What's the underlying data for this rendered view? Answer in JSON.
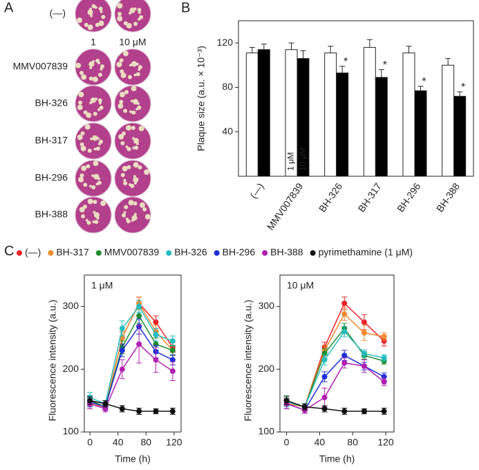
{
  "panel_a": {
    "label": "A",
    "row_labels": [
      "(—)",
      "MMV007839",
      "BH-326",
      "BH-317",
      "BH-296",
      "BH-388"
    ],
    "column_labels": [
      "1",
      "10 μM"
    ]
  },
  "chart_data": [
    {
      "type": "bar",
      "panel_label": "B",
      "ylabel": "Plaque size (a.u. × 10⁻³)",
      "categories": [
        "(—)",
        "MMV007839",
        "BH-326",
        "BH-317",
        "BH-296",
        "BH-388"
      ],
      "series": [
        {
          "name": "1 μM",
          "color": "#ffffff",
          "values": [
            111,
            114,
            111,
            116,
            111,
            100
          ],
          "errors": [
            5,
            6,
            6,
            7,
            6,
            6
          ]
        },
        {
          "name": "10 μM",
          "color": "#000000",
          "values": [
            114,
            106,
            93,
            89,
            77,
            72
          ],
          "errors": [
            5,
            7,
            6,
            7,
            4,
            4
          ],
          "significance": [
            null,
            null,
            "*",
            "*",
            "*",
            "*"
          ]
        }
      ],
      "ylim": [
        0,
        140
      ],
      "yticks": [
        40,
        80,
        120
      ]
    },
    {
      "type": "line",
      "panel_label": "C",
      "annotation": "1 μM",
      "xlabel": "Time (h)",
      "ylabel": "Fluorescence intensity (a.u.)",
      "x": [
        0,
        22,
        46,
        70,
        94,
        118
      ],
      "xlim": [
        -8,
        130
      ],
      "xticks": [
        0,
        40,
        80,
        120
      ],
      "ylim": [
        100,
        350
      ],
      "yticks": [
        100,
        200,
        300
      ],
      "series": [
        {
          "name": "(—)",
          "color": "#e8242a",
          "values": [
            150,
            140,
            250,
            305,
            275,
            235
          ],
          "errors": [
            8,
            5,
            10,
            10,
            10,
            8
          ]
        },
        {
          "name": "BH-317",
          "color": "#f08a30",
          "values": [
            145,
            140,
            250,
            305,
            260,
            230
          ],
          "errors": [
            8,
            5,
            10,
            10,
            10,
            8
          ]
        },
        {
          "name": "MMV007839",
          "color": "#1e8c2e",
          "values": [
            150,
            140,
            235,
            285,
            240,
            230
          ],
          "errors": [
            8,
            5,
            10,
            12,
            10,
            8
          ]
        },
        {
          "name": "BH-326",
          "color": "#27bcbf",
          "values": [
            155,
            145,
            265,
            300,
            255,
            245
          ],
          "errors": [
            8,
            5,
            12,
            10,
            10,
            8
          ]
        },
        {
          "name": "BH-296",
          "color": "#1c2fd6",
          "values": [
            148,
            140,
            230,
            268,
            228,
            215
          ],
          "errors": [
            8,
            5,
            10,
            12,
            10,
            8
          ]
        },
        {
          "name": "BH-388",
          "color": "#b21fb3",
          "values": [
            145,
            137,
            200,
            240,
            215,
            197
          ],
          "errors": [
            8,
            5,
            15,
            30,
            20,
            15
          ]
        },
        {
          "name": "pyrimethamine (1 μM)",
          "color": "#111111",
          "values": [
            150,
            145,
            137,
            133,
            133,
            133
          ],
          "errors": [
            6,
            5,
            5,
            5,
            4,
            5
          ]
        }
      ]
    },
    {
      "type": "line",
      "annotation": "10 μM",
      "xlabel": "Time (h)",
      "ylabel": "Fluorescence intensity (a.u.)",
      "x": [
        0,
        22,
        46,
        70,
        94,
        118
      ],
      "xlim": [
        -8,
        130
      ],
      "xticks": [
        0,
        40,
        80,
        120
      ],
      "ylim": [
        100,
        350
      ],
      "yticks": [
        100,
        200,
        300
      ],
      "series": [
        {
          "color": "#e8242a",
          "values": [
            145,
            140,
            235,
            305,
            275,
            245
          ],
          "errors": [
            8,
            5,
            8,
            10,
            12,
            8
          ]
        },
        {
          "color": "#f08a30",
          "values": [
            145,
            140,
            230,
            288,
            258,
            252
          ],
          "errors": [
            8,
            5,
            8,
            10,
            12,
            6
          ]
        },
        {
          "color": "#1e8c2e",
          "values": [
            150,
            140,
            225,
            265,
            222,
            213
          ],
          "errors": [
            8,
            5,
            8,
            8,
            6,
            5
          ]
        },
        {
          "color": "#27bcbf",
          "values": [
            148,
            140,
            215,
            260,
            225,
            218
          ],
          "errors": [
            8,
            5,
            8,
            8,
            6,
            5
          ]
        },
        {
          "color": "#1c2fd6",
          "values": [
            145,
            135,
            188,
            222,
            205,
            188
          ],
          "errors": [
            8,
            5,
            8,
            8,
            6,
            6
          ]
        },
        {
          "color": "#b21fb3",
          "values": [
            145,
            135,
            155,
            210,
            205,
            180
          ],
          "errors": [
            8,
            5,
            15,
            8,
            10,
            6
          ]
        },
        {
          "color": "#111111",
          "values": [
            150,
            140,
            137,
            133,
            133,
            133
          ],
          "errors": [
            6,
            5,
            5,
            5,
            4,
            5
          ]
        }
      ]
    }
  ]
}
